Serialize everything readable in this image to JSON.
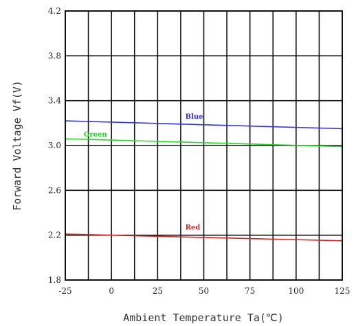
{
  "chart_data": {
    "type": "line",
    "xlabel": "Ambient Temperature Ta(℃)",
    "ylabel": "Forward Voltage Vf(V)",
    "xlim": [
      -25,
      125
    ],
    "ylim": [
      1.8,
      4.2
    ],
    "x_ticks": [
      -25,
      0,
      25,
      50,
      75,
      100,
      125
    ],
    "x_tick_labels": [
      "-25",
      "0",
      "25",
      "50",
      "75",
      "100",
      "125"
    ],
    "y_ticks": [
      1.8,
      2.2,
      2.6,
      3.0,
      3.4,
      3.8,
      4.2
    ],
    "y_tick_labels": [
      "1.8",
      "2.2",
      "2.6",
      "3.0",
      "3.4",
      "3.8",
      "4.2"
    ],
    "grid": true,
    "x_grid_step": 12.5,
    "y_grid_step": 0.4,
    "series": [
      {
        "name": "Blue",
        "color": "#3333ee",
        "x": [
          -25,
          125
        ],
        "y": [
          3.22,
          3.15
        ],
        "label_position": [
          40,
          3.24
        ]
      },
      {
        "name": "Green",
        "color": "#22dd22",
        "x": [
          -25,
          125
        ],
        "y": [
          3.06,
          2.99
        ],
        "label_position": [
          -15,
          3.08
        ]
      },
      {
        "name": "Red",
        "color": "#dd2222",
        "x": [
          -25,
          125
        ],
        "y": [
          2.21,
          2.15
        ],
        "label_position": [
          40,
          2.25
        ]
      }
    ]
  }
}
